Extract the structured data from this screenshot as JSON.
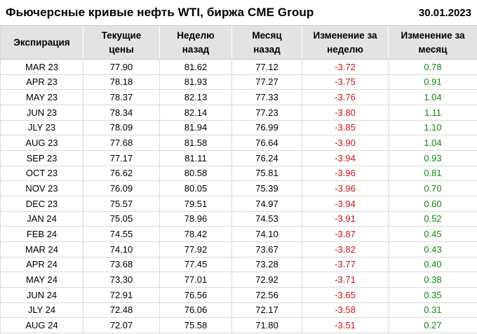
{
  "header": {
    "title": "Фьючерсные кривые нефть WTI, биржа CME Group",
    "date": "30.01.2023"
  },
  "chart_data": {
    "type": "table",
    "title": "Фьючерсные кривые нефть WTI, биржа CME Group",
    "date": "30.01.2023",
    "columns": [
      "Экспирация",
      "Текущие\nцены",
      "Неделю\nназад",
      "Месяц\nназад",
      "Изменение за\nнеделю",
      "Изменение за\nмесяц"
    ],
    "rows": [
      [
        "MAR 23",
        "77.90",
        "81.62",
        "77.12",
        "-3.72",
        "0.78"
      ],
      [
        "APR 23",
        "78.18",
        "81.93",
        "77.27",
        "-3.75",
        "0.91"
      ],
      [
        "MAY 23",
        "78.37",
        "82.13",
        "77.33",
        "-3.76",
        "1.04"
      ],
      [
        "JUN 23",
        "78.34",
        "82.14",
        "77.23",
        "-3.80",
        "1.11"
      ],
      [
        "JLY 23",
        "78.09",
        "81.94",
        "76.99",
        "-3.85",
        "1.10"
      ],
      [
        "AUG 23",
        "77.68",
        "81.58",
        "76.64",
        "-3.90",
        "1.04"
      ],
      [
        "SEP 23",
        "77.17",
        "81.11",
        "76.24",
        "-3.94",
        "0.93"
      ],
      [
        "OCT 23",
        "76.62",
        "80.58",
        "75.81",
        "-3.96",
        "0.81"
      ],
      [
        "NOV 23",
        "76.09",
        "80.05",
        "75.39",
        "-3.96",
        "0.70"
      ],
      [
        "DEC 23",
        "75.57",
        "79.51",
        "74.97",
        "-3.94",
        "0.60"
      ],
      [
        "JAN 24",
        "75.05",
        "78.96",
        "74.53",
        "-3.91",
        "0.52"
      ],
      [
        "FEB 24",
        "74.55",
        "78.42",
        "74.10",
        "-3.87",
        "0.45"
      ],
      [
        "MAR 24",
        "74.10",
        "77.92",
        "73.67",
        "-3.82",
        "0.43"
      ],
      [
        "APR 24",
        "73.68",
        "77.45",
        "73.28",
        "-3.77",
        "0.40"
      ],
      [
        "MAY 24",
        "73.30",
        "77.01",
        "72.92",
        "-3.71",
        "0.38"
      ],
      [
        "JUN 24",
        "72.91",
        "76.56",
        "72.56",
        "-3.65",
        "0.35"
      ],
      [
        "JLY 24",
        "72.48",
        "76.06",
        "72.17",
        "-3.58",
        "0.31"
      ],
      [
        "AUG 24",
        "72.07",
        "75.58",
        "71.80",
        "-3.51",
        "0.27"
      ]
    ]
  },
  "colors": {
    "negative": "#cc1111",
    "positive": "#118811",
    "header_bg": "#e3e3e3",
    "border": "#d9d9d9"
  }
}
